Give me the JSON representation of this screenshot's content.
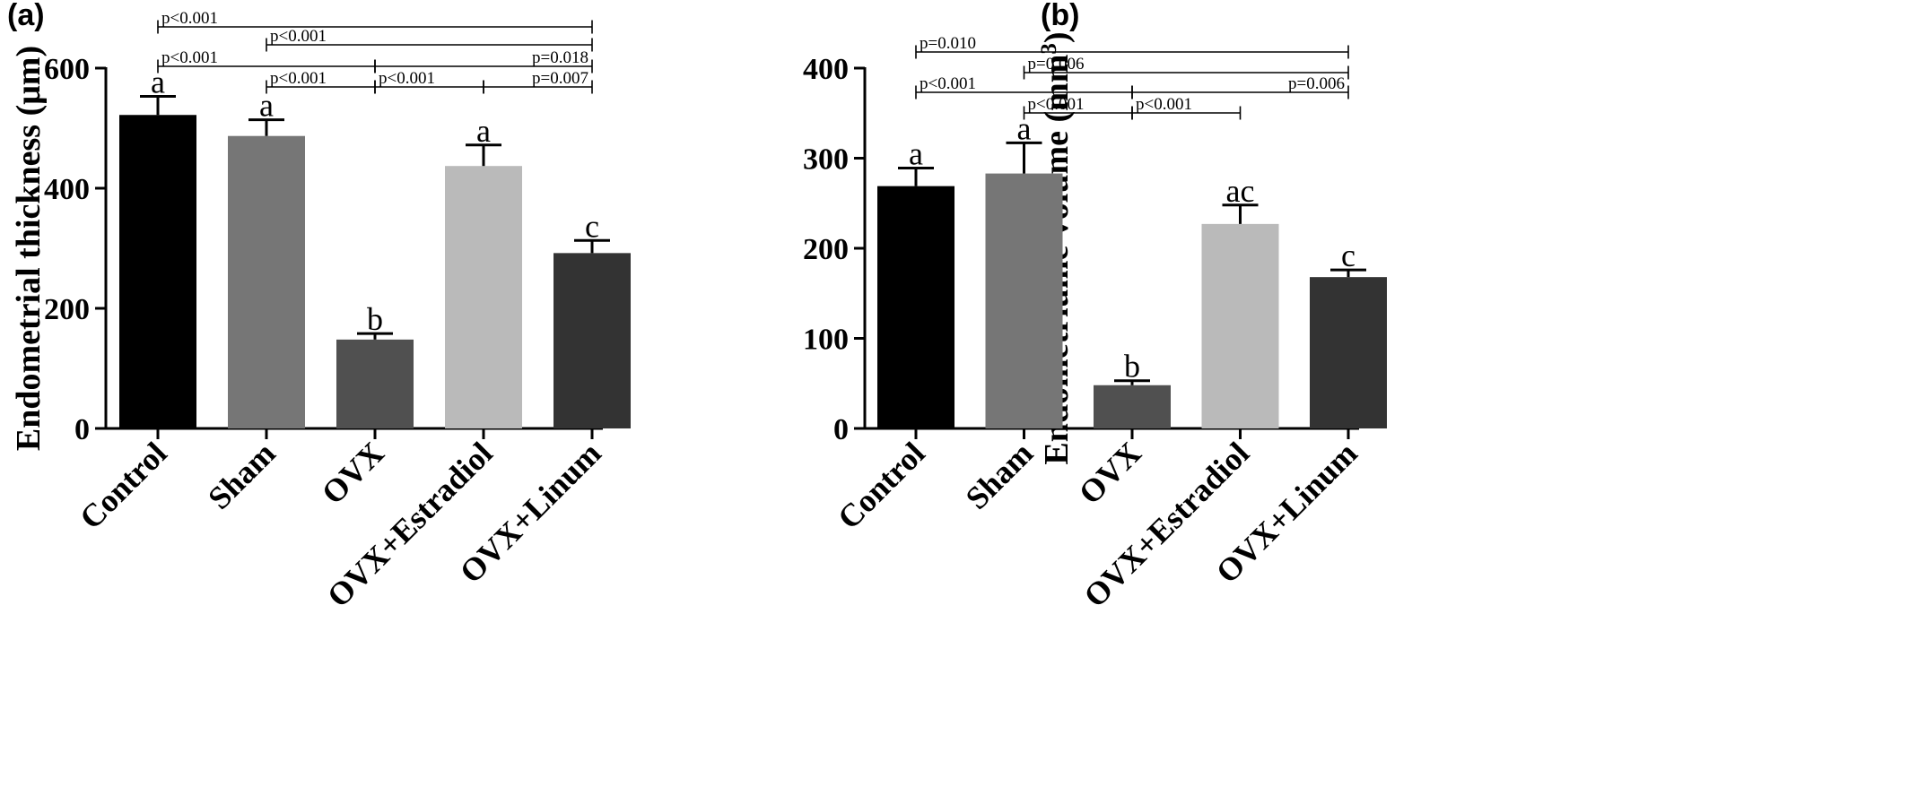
{
  "chart_data": [
    {
      "type": "bar",
      "panel_label": "(a)",
      "ylabel": "Endometrial thickness (μm)",
      "ylim": [
        0,
        600
      ],
      "yticks": [
        "0",
        "200",
        "400",
        "600"
      ],
      "categories": [
        "Control",
        "Sham",
        "OVX",
        "OVX+Estradiol",
        "OVX+Linum"
      ],
      "values": [
        522,
        487,
        148,
        437,
        292
      ],
      "errors": [
        31,
        27,
        10,
        35,
        21
      ],
      "colors": [
        "#000000",
        "#767676",
        "#505050",
        "#bababa",
        "#333333"
      ],
      "letters": [
        "a",
        "a",
        "b",
        "a",
        "c"
      ],
      "brackets": [
        {
          "from": 0,
          "to": 4,
          "label": "p<0.001",
          "row": 0
        },
        {
          "from": 1,
          "to": 4,
          "label": "p<0.001",
          "row": 1
        },
        {
          "from": 0,
          "to": 2,
          "label": "p<0.001",
          "row": 2
        },
        {
          "from": 2,
          "to": 4,
          "label": "p=0.018",
          "row": 2
        },
        {
          "from": 1,
          "to": 2,
          "label": "p<0.001",
          "row": 3
        },
        {
          "from": 2,
          "to": 3,
          "label": "p<0.001",
          "row": 3
        },
        {
          "from": 3,
          "to": 4,
          "label": "p=0.007",
          "row": 3
        }
      ]
    },
    {
      "type": "bar",
      "panel_label": "(b)",
      "ylabel": "Endometriume volume (mm",
      "ylabel_sup": "3",
      "ylabel_end": ")",
      "ylim": [
        0,
        400
      ],
      "yticks": [
        "0",
        "100",
        "200",
        "300",
        "400"
      ],
      "categories": [
        "Control",
        "Sham",
        "OVX",
        "OVX+Estradiol",
        "OVX+Linum"
      ],
      "values": [
        269,
        283,
        48,
        227,
        168
      ],
      "errors": [
        20,
        34,
        5,
        21,
        8
      ],
      "colors": [
        "#000000",
        "#767676",
        "#505050",
        "#bababa",
        "#333333"
      ],
      "letters": [
        "a",
        "a",
        "b",
        "ac",
        "c"
      ],
      "brackets": [
        {
          "from": 0,
          "to": 4,
          "label": "p=0.010",
          "row": 0
        },
        {
          "from": 1,
          "to": 4,
          "label": "p=0.006",
          "row": 1
        },
        {
          "from": 0,
          "to": 2,
          "label": "p<0.001",
          "row": 2
        },
        {
          "from": 2,
          "to": 4,
          "label": "p=0.006",
          "row": 2
        },
        {
          "from": 1,
          "to": 2,
          "label": "p<0.001",
          "row": 3
        },
        {
          "from": 2,
          "to": 3,
          "label": "p<0.001",
          "row": 3
        }
      ]
    }
  ]
}
